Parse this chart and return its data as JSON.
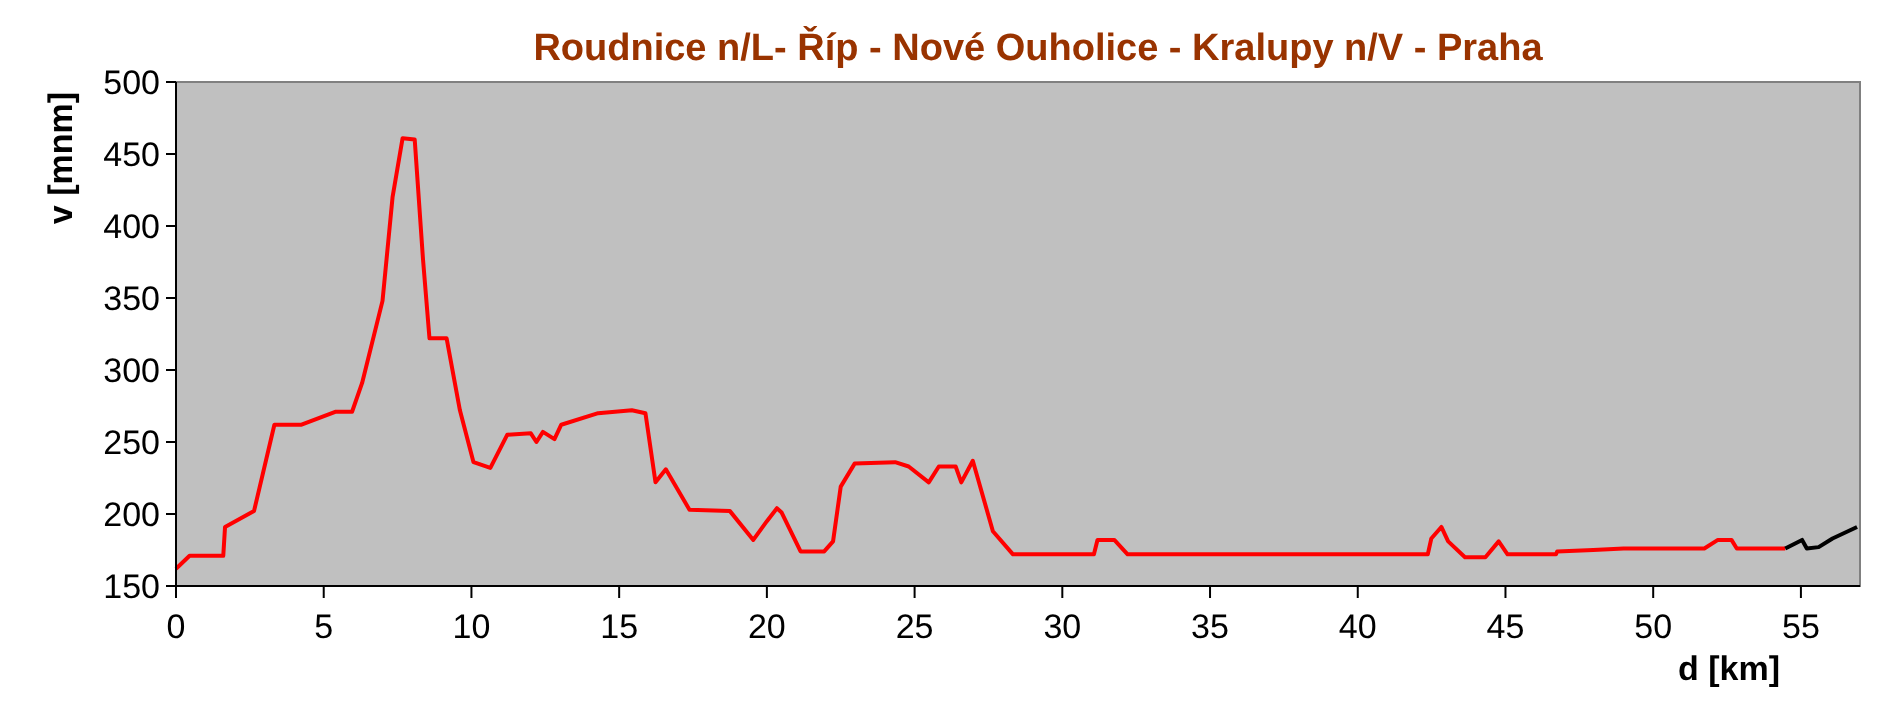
{
  "chart_data": {
    "type": "line",
    "title": "Roudnice n/L- Říp - Nové Ouholice - Kralupy n/V - Praha",
    "xlabel": "d [km]",
    "ylabel": "v [mnm]",
    "xlim": [
      0,
      57
    ],
    "xticks": [
      0,
      5,
      10,
      15,
      20,
      25,
      30,
      35,
      40,
      45,
      50,
      55
    ],
    "ylim": [
      150,
      500
    ],
    "yticks": [
      150,
      200,
      250,
      300,
      350,
      400,
      450,
      500
    ],
    "grid": false,
    "marker": "none",
    "line_style": "solid",
    "series": [
      {
        "color": "#ff0000",
        "x": [
          0,
          0.46,
          1.6,
          1.66,
          2.64,
          3.33,
          4.25,
          5.39,
          5.96,
          6.3,
          6.99,
          7.33,
          7.67,
          8.08,
          8.36,
          8.58,
          9.16,
          9.61,
          10.07,
          10.64,
          11.21,
          12.01,
          12.2,
          12.42,
          12.81,
          13.04,
          14.29,
          15.43,
          15.89,
          16.23,
          16.58,
          17.38,
          18.75,
          19.54,
          20,
          20.34,
          20.5,
          21.14,
          21.94,
          22.24,
          22.5,
          22.97,
          24.34,
          24.8,
          25.48,
          25.82,
          26.39,
          26.58,
          26.97,
          27.65,
          28.33,
          31.07,
          31.19,
          31.76,
          32.21,
          42.37,
          42.49,
          42.83,
          43.06,
          43.63,
          44.32,
          44.77,
          45.07,
          46.71,
          46.75,
          47.97,
          49,
          51.73,
          52.19,
          52.65,
          52.83,
          54.47
        ],
        "values": [
          162,
          171,
          171,
          191,
          202,
          262,
          262,
          271,
          271,
          291,
          348,
          420,
          461,
          460,
          377,
          322,
          322,
          272,
          236,
          232,
          255,
          256,
          250,
          257,
          252,
          262,
          270,
          272,
          270,
          222,
          231,
          203,
          202,
          182,
          195,
          204,
          201,
          174,
          174,
          181,
          219,
          235,
          236,
          233,
          222,
          233,
          233,
          222,
          237,
          188,
          172,
          172,
          182,
          182,
          172,
          172,
          183,
          191,
          181,
          170,
          170,
          181,
          172,
          172,
          174,
          175,
          176,
          176,
          182,
          182,
          176,
          176
        ]
      },
      {
        "color": "#000000",
        "x": [
          54.47,
          55.04,
          55.2,
          55.6,
          56.07,
          56.9
        ],
        "values": [
          176,
          182,
          176,
          177,
          183,
          191
        ]
      }
    ]
  }
}
